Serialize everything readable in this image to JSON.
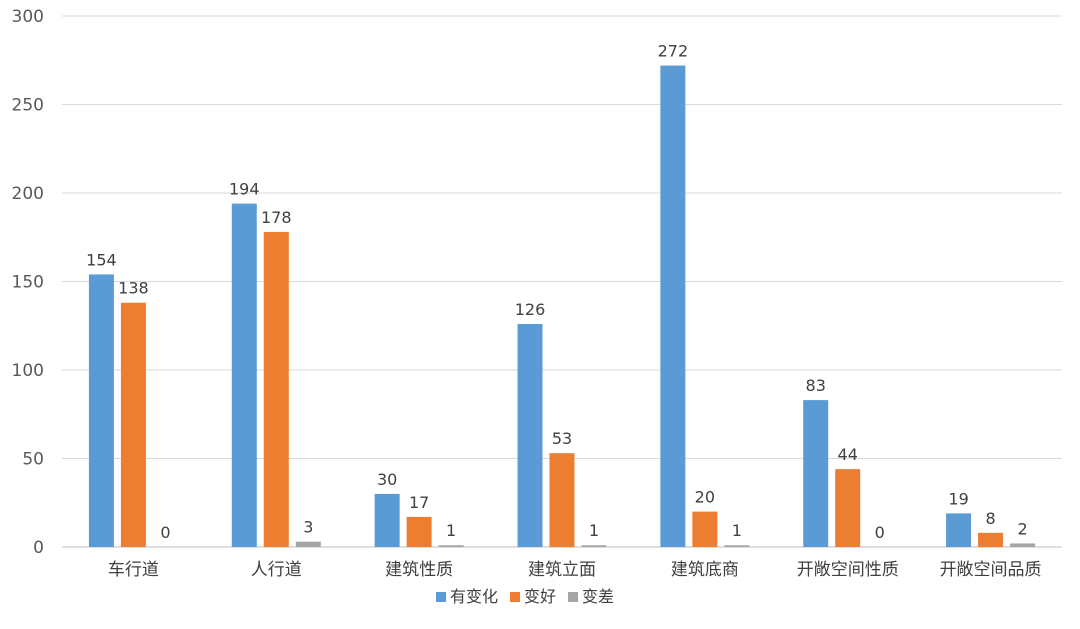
{
  "chart_data": {
    "type": "bar",
    "title": "",
    "xlabel": "",
    "ylabel": "",
    "ylim": [
      0,
      300
    ],
    "yticks": [
      0,
      50,
      100,
      150,
      200,
      250,
      300
    ],
    "grid": true,
    "legend_position": "bottom",
    "categories": [
      "车行道",
      "人行道",
      "建筑性质",
      "建筑立面",
      "建筑底商",
      "开敞空间性质",
      "开敞空间品质"
    ],
    "series": [
      {
        "name": "有变化",
        "color": "#5b9bd5",
        "values": [
          154,
          194,
          30,
          126,
          272,
          83,
          19
        ]
      },
      {
        "name": "变好",
        "color": "#ed7d31",
        "values": [
          138,
          178,
          17,
          53,
          20,
          44,
          8
        ]
      },
      {
        "name": "变差",
        "color": "#a5a5a5",
        "values": [
          0,
          3,
          1,
          1,
          1,
          0,
          2
        ]
      }
    ]
  }
}
